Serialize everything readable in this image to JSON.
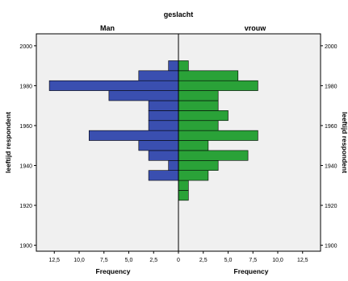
{
  "chart_data": {
    "type": "bar",
    "orientation": "horizontal",
    "layout": "population-pyramid",
    "title": "geslacht",
    "ylabel_left": "leeftijd respondent",
    "ylabel_right": "leeftijd respondent",
    "panels": [
      {
        "name": "Man",
        "xlabel": "Frequency",
        "color": "#3a4fb0",
        "direction": "left"
      },
      {
        "name": "vrouw",
        "xlabel": "Frequency",
        "color": "#2aa238",
        "direction": "right"
      }
    ],
    "xlim": [
      0,
      15
    ],
    "ylim": [
      1897,
      2006
    ],
    "x_ticks": [
      12.5,
      10.0,
      7.5,
      5.0,
      2.5,
      0.0
    ],
    "x_tick_labels_left": [
      "12,5",
      "10,0",
      "7,5",
      "5,0",
      "2,5",
      "0"
    ],
    "x_tick_labels_right": [
      "0",
      "2,5",
      "5,0",
      "7,5",
      "10,0",
      "12,5"
    ],
    "y_ticks": [
      1900,
      1920,
      1940,
      1960,
      1980,
      2000
    ],
    "bin_width": 5,
    "bins": [
      1925,
      1930,
      1935,
      1940,
      1945,
      1950,
      1955,
      1960,
      1965,
      1970,
      1975,
      1980,
      1985,
      1990
    ],
    "series": [
      {
        "name": "Man",
        "values": [
          0,
          0,
          3,
          1,
          3,
          4,
          9,
          3,
          3,
          3,
          7,
          13,
          4,
          1
        ]
      },
      {
        "name": "vrouw",
        "values": [
          1,
          1,
          3,
          4,
          7,
          3,
          8,
          4,
          5,
          4,
          4,
          8,
          6,
          1
        ]
      }
    ],
    "grid": false,
    "colors": {
      "plot_bg": "#f0f0f0",
      "bar_edge": "#000000"
    }
  }
}
